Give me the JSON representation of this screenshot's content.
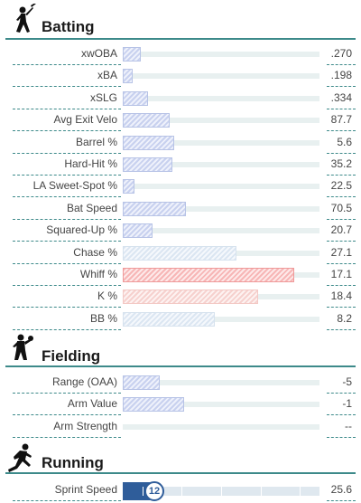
{
  "sections": {
    "batting": {
      "title": "Batting",
      "icon": "batter-icon",
      "rows": [
        {
          "label": "xwOBA",
          "value": ".270",
          "fill": 0.09,
          "color": "blue"
        },
        {
          "label": "xBA",
          "value": ".198",
          "fill": 0.05,
          "color": "blue"
        },
        {
          "label": "xSLG",
          "value": ".334",
          "fill": 0.13,
          "color": "blue"
        },
        {
          "label": "Avg Exit Velo",
          "value": "87.7",
          "fill": 0.24,
          "color": "blue"
        },
        {
          "label": "Barrel %",
          "value": "5.6",
          "fill": 0.26,
          "color": "blue"
        },
        {
          "label": "Hard-Hit %",
          "value": "35.2",
          "fill": 0.25,
          "color": "blue"
        },
        {
          "label": "LA Sweet-Spot %",
          "value": "22.5",
          "fill": 0.06,
          "color": "blue"
        },
        {
          "label": "Bat Speed",
          "value": "70.5",
          "fill": 0.32,
          "color": "blue"
        },
        {
          "label": "Squared-Up %",
          "value": "20.7",
          "fill": 0.15,
          "color": "blue"
        },
        {
          "label": "Chase %",
          "value": "27.1",
          "fill": 0.58,
          "color": "pale"
        },
        {
          "label": "Whiff %",
          "value": "17.1",
          "fill": 0.87,
          "color": "red"
        },
        {
          "label": "K %",
          "value": "18.4",
          "fill": 0.69,
          "color": "pink"
        },
        {
          "label": "BB %",
          "value": "8.2",
          "fill": 0.47,
          "color": "pale"
        }
      ]
    },
    "fielding": {
      "title": "Fielding",
      "icon": "fielder-icon",
      "rows": [
        {
          "label": "Range (OAA)",
          "value": "-5",
          "fill": 0.19,
          "color": "blue"
        },
        {
          "label": "Arm Value",
          "value": "-1",
          "fill": 0.31,
          "color": "blue"
        },
        {
          "label": "Arm Strength",
          "value": "--",
          "fill": 0,
          "color": "blue"
        }
      ]
    },
    "running": {
      "title": "Running",
      "icon": "runner-icon",
      "rows": [
        {
          "label": "Sprint Speed",
          "value": "25.6",
          "percentile": "12",
          "fill": 0.12,
          "color": "navy"
        }
      ]
    }
  }
}
